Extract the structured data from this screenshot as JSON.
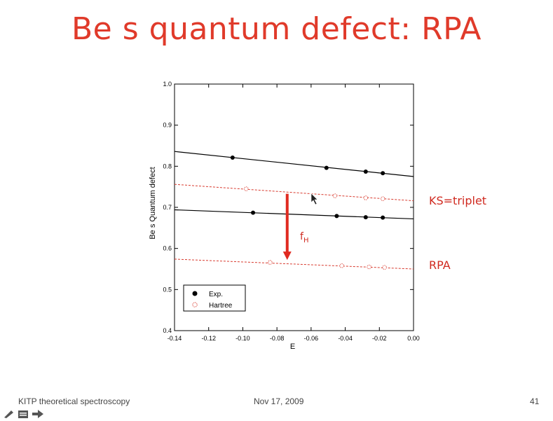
{
  "slide": {
    "title": "Be s quantum defect: RPA",
    "footer_left": "KITP theoretical spectroscopy",
    "footer_center": "Nov 17, 2009",
    "footer_page": "41"
  },
  "annotations": {
    "ks_label": "KS=triplet",
    "rpa_label": "RPA",
    "fh_label": "f",
    "fh_sub": "H"
  },
  "colors": {
    "title": "#e03a2a",
    "experiment": "#000000",
    "hartree": "#d83a2e",
    "arrow": "#e02a20"
  },
  "nav_icons": [
    "pen-icon",
    "menu-icon",
    "arrow-right-icon"
  ],
  "chart_data": {
    "type": "scatter",
    "xlabel": "E",
    "ylabel": "Be s Quantum defect",
    "xlim": [
      -0.14,
      0.0
    ],
    "ylim": [
      0.4,
      1.0
    ],
    "xticks": [
      "-0.14",
      "-0.12",
      "-0.10",
      "-0.08",
      "-0.06",
      "-0.04",
      "-0.02",
      "0.00"
    ],
    "yticks": [
      "0.4",
      "0.5",
      "0.6",
      "0.7",
      "0.8",
      "0.9",
      "1.0"
    ],
    "legend": {
      "position": "bottom-left",
      "entries": [
        "Exp.",
        "Hartree"
      ]
    },
    "series": [
      {
        "name": "Exp.",
        "marker": "filled-circle",
        "style": "solid",
        "points": [
          [
            -0.106,
            0.821
          ],
          [
            -0.051,
            0.796
          ],
          [
            -0.028,
            0.787
          ],
          [
            -0.018,
            0.783
          ]
        ],
        "fit": [
          [
            -0.14,
            0.836
          ],
          [
            0.0,
            0.775
          ]
        ]
      },
      {
        "name": "Exp.",
        "marker": "filled-circle",
        "style": "solid",
        "points": [
          [
            -0.094,
            0.687
          ],
          [
            -0.045,
            0.679
          ],
          [
            -0.028,
            0.676
          ],
          [
            -0.018,
            0.675
          ]
        ],
        "fit": [
          [
            -0.14,
            0.694
          ],
          [
            0.0,
            0.672
          ]
        ]
      },
      {
        "name": "Hartree",
        "marker": "open-circle",
        "style": "dashed",
        "points": [
          [
            -0.098,
            0.745
          ],
          [
            -0.046,
            0.728
          ],
          [
            -0.028,
            0.723
          ],
          [
            -0.018,
            0.721
          ]
        ],
        "fit": [
          [
            -0.14,
            0.756
          ],
          [
            0.0,
            0.716
          ]
        ]
      },
      {
        "name": "Hartree",
        "marker": "open-circle",
        "style": "dashed",
        "points": [
          [
            -0.084,
            0.566
          ],
          [
            -0.042,
            0.558
          ],
          [
            -0.026,
            0.555
          ],
          [
            -0.017,
            0.554
          ]
        ],
        "fit": [
          [
            -0.14,
            0.574
          ],
          [
            0.0,
            0.55
          ]
        ]
      }
    ],
    "arrow": {
      "x": -0.074,
      "from_y": 0.733,
      "to_y": 0.572
    }
  }
}
